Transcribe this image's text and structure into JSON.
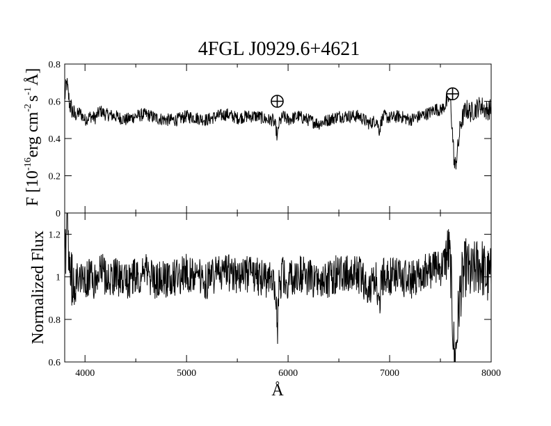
{
  "chart_data": [
    {
      "type": "line",
      "title": "4FGL J0929.6+4621",
      "ylabel": {
        "prefix": "F [10",
        "exp1": "-16",
        "mid1": "erg cm",
        "exp2": "-2",
        "mid2": "s",
        "exp3": "-1",
        "suffix": "Å]"
      },
      "xlim": [
        3800,
        8000
      ],
      "ylim": [
        0,
        0.8
      ],
      "yticks": [
        "0",
        "0.2",
        "0.4",
        "0.6",
        "0.8"
      ],
      "series": [
        {
          "x": [
            3800,
            3820,
            3850,
            3900,
            3950,
            4000,
            4050,
            4100,
            4150,
            4200,
            4300,
            4400,
            4500,
            4600,
            4700,
            4800,
            4900,
            5000,
            5100,
            5200,
            5300,
            5400,
            5500,
            5600,
            5700,
            5800,
            5850,
            5880,
            5893,
            5910,
            5950,
            6000,
            6100,
            6200,
            6300,
            6400,
            6500,
            6600,
            6700,
            6800,
            6870,
            6900,
            6920,
            6950,
            7000,
            7100,
            7200,
            7300,
            7400,
            7450,
            7500,
            7550,
            7580,
            7600,
            7620,
            7640,
            7660,
            7680,
            7700,
            7750,
            7800,
            7850,
            7900,
            7950,
            8000
          ],
          "y": [
            0.62,
            0.7,
            0.58,
            0.52,
            0.54,
            0.5,
            0.52,
            0.51,
            0.55,
            0.53,
            0.52,
            0.5,
            0.52,
            0.53,
            0.51,
            0.5,
            0.5,
            0.52,
            0.51,
            0.5,
            0.52,
            0.53,
            0.51,
            0.52,
            0.52,
            0.5,
            0.5,
            0.46,
            0.4,
            0.48,
            0.52,
            0.5,
            0.52,
            0.5,
            0.48,
            0.5,
            0.52,
            0.52,
            0.52,
            0.48,
            0.5,
            0.44,
            0.5,
            0.52,
            0.51,
            0.52,
            0.5,
            0.52,
            0.54,
            0.56,
            0.55,
            0.58,
            0.62,
            0.6,
            0.42,
            0.24,
            0.3,
            0.38,
            0.48,
            0.56,
            0.54,
            0.56,
            0.58,
            0.55,
            0.56
          ]
        }
      ],
      "annotations": [
        {
          "symbol": "⊕",
          "x": 5893,
          "y": 0.6
        },
        {
          "symbol": "⊕",
          "x": 7620,
          "y": 0.64
        }
      ]
    },
    {
      "type": "line",
      "xlabel": "Å",
      "ylabel": "Normalized Flux",
      "xlim": [
        3800,
        8000
      ],
      "ylim": [
        0.6,
        1.3
      ],
      "xticks": [
        "4000",
        "5000",
        "6000",
        "7000",
        "8000"
      ],
      "yticks": [
        "0.6",
        "0.8",
        "1",
        "1.2"
      ],
      "series": [
        {
          "x": [
            3800,
            3820,
            3850,
            3900,
            3950,
            4000,
            4050,
            4100,
            4150,
            4200,
            4300,
            4400,
            4500,
            4600,
            4700,
            4800,
            4900,
            5000,
            5100,
            5200,
            5300,
            5400,
            5500,
            5600,
            5700,
            5800,
            5850,
            5880,
            5893,
            5910,
            5950,
            6000,
            6100,
            6200,
            6300,
            6400,
            6500,
            6600,
            6700,
            6800,
            6870,
            6900,
            6920,
            6950,
            7000,
            7100,
            7200,
            7300,
            7400,
            7450,
            7500,
            7550,
            7580,
            7600,
            7620,
            7640,
            7660,
            7680,
            7700,
            7750,
            7800,
            7850,
            7900,
            7950,
            8000
          ],
          "y": [
            1.05,
            1.25,
            1.0,
            0.95,
            1.02,
            0.98,
            1.0,
            0.97,
            1.04,
            1.0,
            1.0,
            0.97,
            1.0,
            1.02,
            0.98,
            0.99,
            1.0,
            1.02,
            1.0,
            0.98,
            1.01,
            1.02,
            1.0,
            1.01,
            1.0,
            0.99,
            0.98,
            0.9,
            0.72,
            0.96,
            1.02,
            0.98,
            1.02,
            1.0,
            0.96,
            0.99,
            1.02,
            1.01,
            1.01,
            0.95,
            0.98,
            0.85,
            0.98,
            1.02,
            1.0,
            1.0,
            0.98,
            1.02,
            1.03,
            1.05,
            1.04,
            1.08,
            1.12,
            1.05,
            0.8,
            0.6,
            0.7,
            0.85,
            0.95,
            1.05,
            1.0,
            1.04,
            1.06,
            1.0,
            1.0
          ]
        }
      ]
    }
  ]
}
